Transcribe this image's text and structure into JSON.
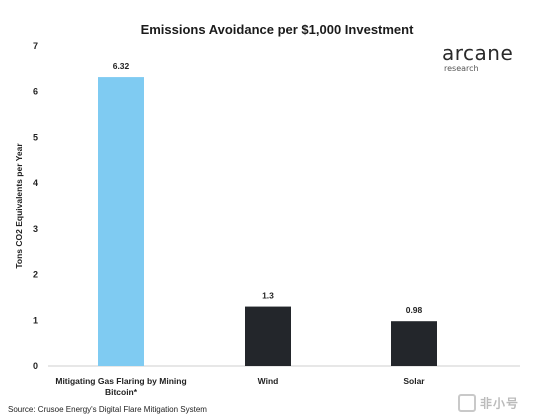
{
  "chart_data": {
    "type": "bar",
    "title": "Emissions Avoidance per $1,000 Investment",
    "xlabel": "",
    "ylabel": "Tons CO2 Equivalents per Year",
    "categories": [
      "Mitigating Gas Flaring by Mining Bitcoin*",
      "Wind",
      "Solar"
    ],
    "category_lines": [
      [
        "Mitigating Gas Flaring by Mining",
        "Bitcoin*"
      ],
      [
        "Wind"
      ],
      [
        "Solar"
      ]
    ],
    "values": [
      6.32,
      1.3,
      0.98
    ],
    "data_labels": [
      "6.32",
      "1.3",
      "0.98"
    ],
    "bar_colors": [
      "#7fcbf2",
      "#23262b",
      "#23262b"
    ],
    "ylim": [
      0,
      7
    ],
    "yticks": [
      0,
      1,
      2,
      3,
      4,
      5,
      6,
      7
    ],
    "grid": false,
    "legend": "none"
  },
  "logo": {
    "main": "arcane",
    "sub": "research"
  },
  "source": "Source: Crusoe Energy's Digital Flare Mitigation System",
  "watermark": {
    "icon": "watermark-logo-icon",
    "text": "非小号"
  }
}
